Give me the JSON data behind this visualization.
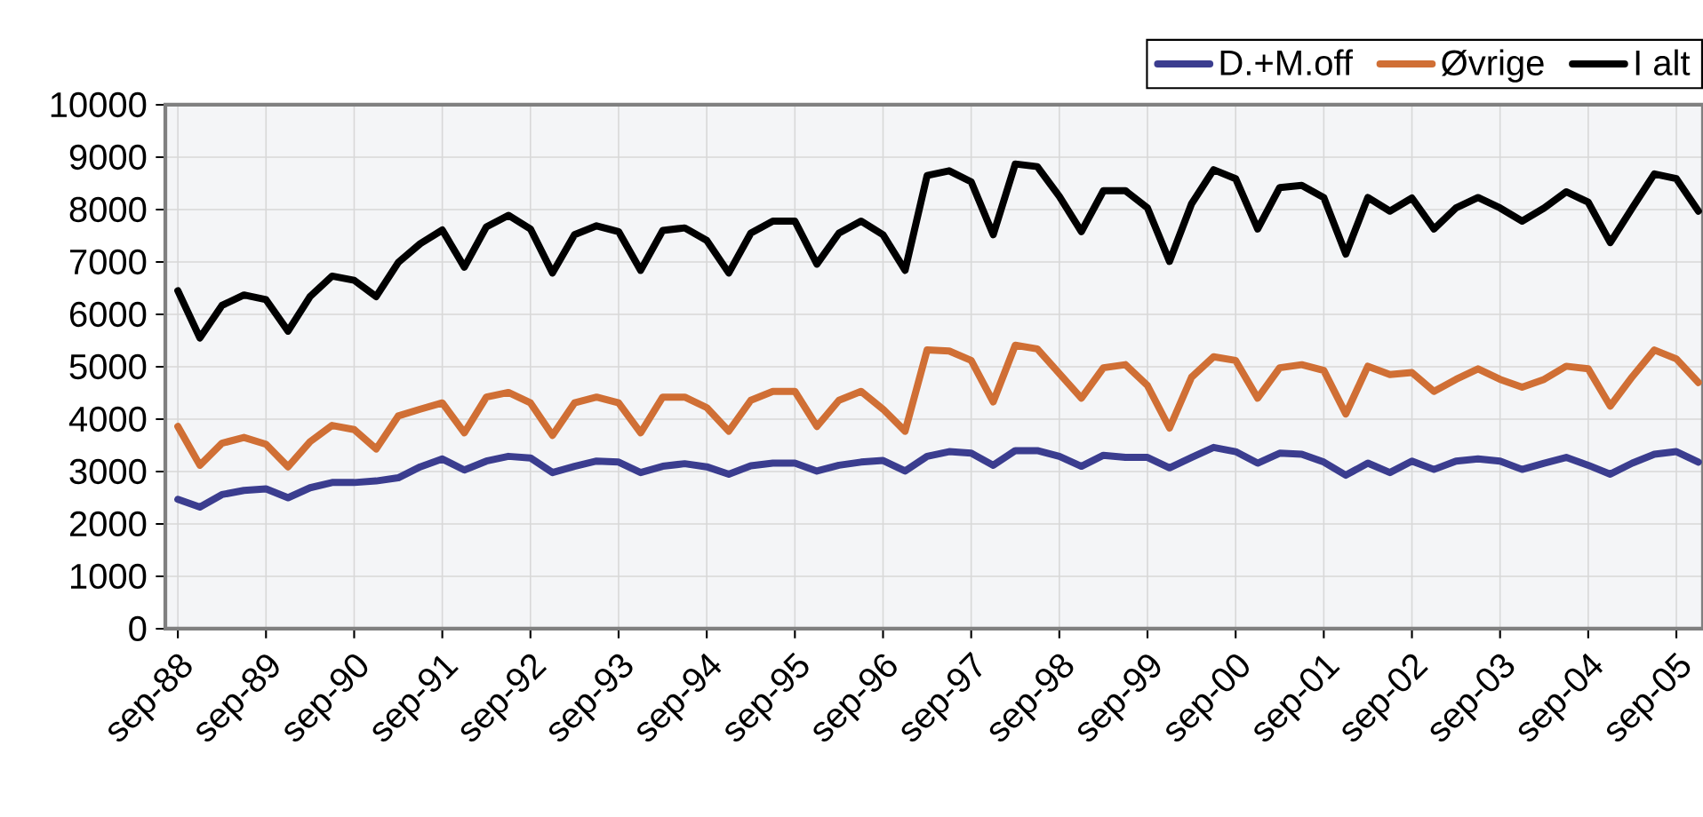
{
  "chart_data": {
    "type": "line",
    "x": [
      "1988-09",
      "1988-12",
      "1989-03",
      "1989-06",
      "1989-09",
      "1989-12",
      "1990-03",
      "1990-06",
      "1990-09",
      "1990-12",
      "1991-03",
      "1991-06",
      "1991-09",
      "1991-12",
      "1992-03",
      "1992-06",
      "1992-09",
      "1992-12",
      "1993-03",
      "1993-06",
      "1993-09",
      "1993-12",
      "1994-03",
      "1994-06",
      "1994-09",
      "1994-12",
      "1995-03",
      "1995-06",
      "1995-09",
      "1995-12",
      "1996-03",
      "1996-06",
      "1996-09",
      "1996-12",
      "1997-03",
      "1997-06",
      "1997-09",
      "1997-12",
      "1998-03",
      "1998-06",
      "1998-09",
      "1998-12",
      "1999-03",
      "1999-06",
      "1999-09",
      "1999-12",
      "2000-03",
      "2000-06",
      "2000-09",
      "2000-12",
      "2001-03",
      "2001-06",
      "2001-09",
      "2001-12",
      "2002-03",
      "2002-06",
      "2002-09",
      "2002-12",
      "2003-03",
      "2003-06",
      "2003-09",
      "2003-12",
      "2004-03",
      "2004-06",
      "2004-09",
      "2004-12",
      "2005-03",
      "2005-06",
      "2005-09",
      "2005-12"
    ],
    "series": [
      {
        "name": "D.+M.off",
        "color": "#3b3d8f",
        "values": [
          2470,
          2320,
          2560,
          2640,
          2670,
          2500,
          2690,
          2790,
          2790,
          2820,
          2880,
          3090,
          3240,
          3030,
          3200,
          3290,
          3260,
          2980,
          3100,
          3200,
          3180,
          2980,
          3100,
          3150,
          3090,
          2950,
          3110,
          3160,
          3160,
          3010,
          3120,
          3180,
          3210,
          3010,
          3290,
          3380,
          3350,
          3120,
          3400,
          3400,
          3290,
          3100,
          3310,
          3270,
          3270,
          3070,
          3270,
          3460,
          3380,
          3160,
          3350,
          3330,
          3180,
          2930,
          3160,
          2980,
          3200,
          3040,
          3200,
          3240,
          3200,
          3040,
          3160,
          3270,
          3120,
          2950,
          3160,
          3330,
          3380,
          3180
        ]
      },
      {
        "name": "Øvrige",
        "color": "#d06f35",
        "values": [
          3860,
          3120,
          3540,
          3650,
          3520,
          3090,
          3570,
          3880,
          3800,
          3430,
          4060,
          4190,
          4310,
          3740,
          4420,
          4510,
          4310,
          3690,
          4310,
          4420,
          4310,
          3740,
          4420,
          4420,
          4220,
          3770,
          4360,
          4530,
          4530,
          3860,
          4360,
          4530,
          4190,
          3770,
          5320,
          5300,
          5120,
          4330,
          5410,
          5340,
          4870,
          4400,
          4980,
          5040,
          4640,
          3830,
          4800,
          5190,
          5120,
          4400,
          4980,
          5040,
          4930,
          4100,
          5010,
          4850,
          4890,
          4530,
          4760,
          4960,
          4760,
          4610,
          4760,
          5010,
          4960,
          4250,
          4810,
          5320,
          5150,
          4700
        ]
      },
      {
        "name": "I alt",
        "color": "#000000",
        "values": [
          6450,
          5550,
          6170,
          6370,
          6280,
          5680,
          6340,
          6730,
          6650,
          6340,
          6990,
          7350,
          7610,
          6900,
          7670,
          7890,
          7630,
          6790,
          7520,
          7690,
          7580,
          6840,
          7600,
          7650,
          7410,
          6790,
          7550,
          7780,
          7780,
          6960,
          7550,
          7780,
          7520,
          6840,
          8650,
          8740,
          8530,
          7520,
          8870,
          8820,
          8250,
          7580,
          8360,
          8360,
          8030,
          7010,
          8110,
          8760,
          8590,
          7630,
          8420,
          8460,
          8230,
          7150,
          8230,
          7970,
          8220,
          7630,
          8030,
          8230,
          8030,
          7780,
          8030,
          8340,
          8140,
          7370,
          8030,
          8680,
          8590,
          7970
        ]
      }
    ],
    "xlim": [
      "1988-07-10",
      "2005-12-20"
    ],
    "xticks": [
      {
        "value": "1988-09",
        "label": "sep-88"
      },
      {
        "value": "1989-09",
        "label": "sep-89"
      },
      {
        "value": "1990-09",
        "label": "sep-90"
      },
      {
        "value": "1991-09",
        "label": "sep-91"
      },
      {
        "value": "1992-09",
        "label": "sep-92"
      },
      {
        "value": "1993-09",
        "label": "sep-93"
      },
      {
        "value": "1994-09",
        "label": "sep-94"
      },
      {
        "value": "1995-09",
        "label": "sep-95"
      },
      {
        "value": "1996-09",
        "label": "sep-96"
      },
      {
        "value": "1997-09",
        "label": "sep-97"
      },
      {
        "value": "1998-09",
        "label": "sep-98"
      },
      {
        "value": "1999-09",
        "label": "sep-99"
      },
      {
        "value": "2000-09",
        "label": "sep-00"
      },
      {
        "value": "2001-09",
        "label": "sep-01"
      },
      {
        "value": "2002-09",
        "label": "sep-02"
      },
      {
        "value": "2003-09",
        "label": "sep-03"
      },
      {
        "value": "2004-09",
        "label": "sep-04"
      },
      {
        "value": "2005-09",
        "label": "sep-05"
      }
    ],
    "ylim": [
      0,
      10000
    ],
    "yticks": [
      0,
      1000,
      2000,
      3000,
      4000,
      5000,
      6000,
      7000,
      8000,
      9000,
      10000
    ],
    "grid": true,
    "legend": "top right"
  }
}
